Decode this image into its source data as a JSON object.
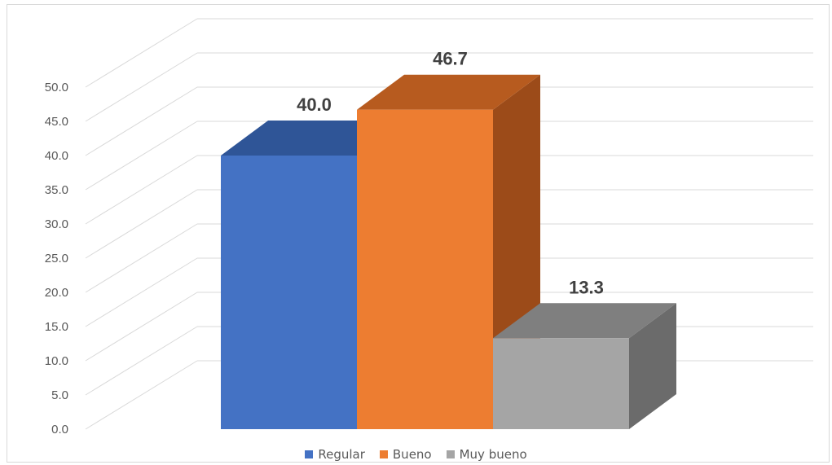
{
  "chart_data": {
    "type": "bar",
    "style": "3d-column",
    "categories": [
      "Regular",
      "Bueno",
      "Muy bueno"
    ],
    "values": [
      40.0,
      46.7,
      13.3
    ],
    "data_labels": [
      "40.0",
      "46.7",
      "13.3"
    ],
    "ylim": [
      0,
      50
    ],
    "y_ticks": [
      "0.0",
      "5.0",
      "10.0",
      "15.0",
      "20.0",
      "25.0",
      "30.0",
      "35.0",
      "40.0",
      "45.0",
      "50.0"
    ],
    "grid": true,
    "legend_position": "bottom",
    "legend": [
      "Regular",
      "Bueno",
      "Muy bueno"
    ],
    "colors": {
      "Regular": {
        "front": "#4472c4",
        "top": "#2f5597",
        "side": "#2f5597"
      },
      "Bueno": {
        "front": "#ed7d31",
        "top": "#b75b1f",
        "side": "#9c4b19"
      },
      "Muy bueno": {
        "front": "#a5a5a5",
        "top": "#7f7f7f",
        "side": "#6b6b6b"
      }
    }
  }
}
